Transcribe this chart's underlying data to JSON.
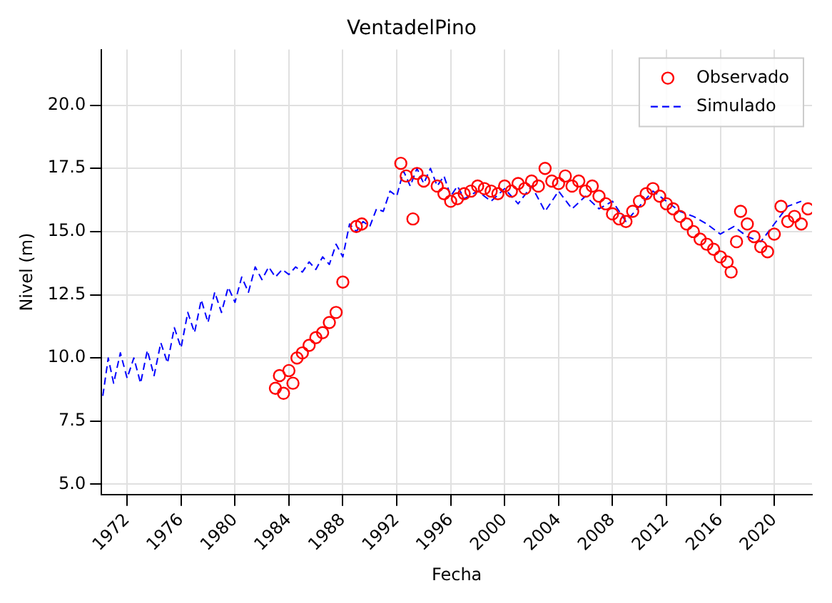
{
  "chart_data": {
    "type": "line",
    "title": "VentadelPino",
    "xlabel": "Fecha",
    "ylabel": "Nivel (m)",
    "xlim": [
      1970.1,
      2022.8
    ],
    "ylim": [
      4.6,
      22.2
    ],
    "xticks": [
      1972,
      1976,
      1980,
      1984,
      1988,
      1992,
      1996,
      2000,
      2004,
      2008,
      2012,
      2016,
      2020
    ],
    "yticks": [
      {
        "value": 5,
        "label": "5.0"
      },
      {
        "value": 7.5,
        "label": "7.5"
      },
      {
        "value": 10,
        "label": "10.0"
      },
      {
        "value": 12.5,
        "label": "12.5"
      },
      {
        "value": 15,
        "label": "15.0"
      },
      {
        "value": 17.5,
        "label": "17.5"
      },
      {
        "value": 20,
        "label": "20.0"
      }
    ],
    "grid": true,
    "legend": "top right",
    "series": [
      {
        "name": "Observado",
        "type": "scatter",
        "marker": "circle",
        "color": "#ff0000",
        "x": [
          1983,
          1983.3,
          1983.6,
          1984,
          1984.3,
          1984.6,
          1985,
          1985.5,
          1986,
          1986.5,
          1987,
          1987.5,
          1988,
          1989,
          1989.4,
          1992.3,
          1992.7,
          1993.2,
          1993.5,
          1994,
          1995,
          1995.5,
          1996,
          1996.5,
          1997,
          1997.5,
          1998,
          1998.5,
          1999,
          1999.5,
          2000,
          2000.5,
          2001,
          2001.5,
          2002,
          2002.5,
          2003,
          2003.5,
          2004,
          2004.5,
          2005,
          2005.5,
          2006,
          2006.5,
          2007,
          2007.5,
          2008,
          2008.5,
          2009,
          2009.5,
          2010,
          2010.5,
          2011,
          2011.5,
          2012,
          2012.5,
          2013,
          2013.5,
          2014,
          2014.5,
          2015,
          2015.5,
          2016,
          2016.5,
          2016.8,
          2017.2,
          2017.5,
          2018,
          2018.5,
          2019,
          2019.5,
          2020,
          2020.5,
          2021,
          2021.5,
          2022,
          2022.5
        ],
        "values": [
          8.8,
          9.3,
          8.6,
          9.5,
          9.0,
          10.0,
          10.2,
          10.5,
          10.8,
          11.0,
          11.4,
          11.8,
          13.0,
          15.2,
          15.3,
          17.7,
          17.2,
          15.5,
          17.3,
          17.0,
          16.8,
          16.5,
          16.2,
          16.3,
          16.5,
          16.6,
          16.8,
          16.7,
          16.6,
          16.5,
          16.8,
          16.6,
          16.9,
          16.7,
          17.0,
          16.8,
          17.5,
          17.0,
          16.9,
          17.2,
          16.8,
          17.0,
          16.6,
          16.8,
          16.4,
          16.1,
          15.7,
          15.5,
          15.4,
          15.8,
          16.2,
          16.5,
          16.7,
          16.4,
          16.1,
          15.9,
          15.6,
          15.3,
          15.0,
          14.7,
          14.5,
          14.3,
          14.0,
          13.8,
          13.4,
          14.6,
          15.8,
          15.3,
          14.8,
          14.4,
          14.2,
          14.9,
          16.0,
          15.4,
          15.6,
          15.3,
          15.9
        ]
      },
      {
        "name": "Simulado",
        "type": "line",
        "marker": "none",
        "line_style": "dashed",
        "color": "#0000ff",
        "x": [
          1970.2,
          1970.6,
          1971,
          1971.5,
          1972,
          1972.5,
          1973,
          1973.5,
          1974,
          1974.5,
          1975,
          1975.5,
          1976,
          1976.5,
          1977,
          1977.5,
          1978,
          1978.5,
          1979,
          1979.5,
          1980,
          1980.5,
          1981,
          1981.5,
          1982,
          1982.5,
          1983,
          1983.5,
          1984,
          1984.5,
          1985,
          1985.5,
          1986,
          1986.5,
          1987,
          1987.5,
          1988,
          1988.5,
          1989,
          1989.5,
          1990,
          1990.5,
          1991,
          1991.5,
          1992,
          1992.5,
          1993,
          1993.5,
          1994,
          1994.5,
          1995,
          1995.5,
          1996,
          1996.5,
          1997,
          1998,
          1999,
          2000,
          2001,
          2002,
          2003,
          2004,
          2005,
          2006,
          2007,
          2008,
          2009,
          2010,
          2011,
          2012,
          2013,
          2014,
          2015,
          2016,
          2017,
          2018,
          2019,
          2020,
          2021,
          2022
        ],
        "values": [
          8.5,
          10.0,
          9.0,
          10.2,
          9.2,
          10.0,
          9.0,
          10.3,
          9.3,
          10.6,
          9.8,
          11.2,
          10.4,
          11.8,
          11.0,
          12.3,
          11.4,
          12.6,
          11.8,
          12.8,
          12.2,
          13.2,
          12.6,
          13.6,
          13.1,
          13.6,
          13.2,
          13.5,
          13.3,
          13.6,
          13.4,
          13.8,
          13.5,
          14.0,
          13.7,
          14.5,
          14.0,
          15.3,
          15.0,
          15.4,
          15.2,
          15.9,
          15.8,
          16.6,
          16.4,
          17.4,
          16.8,
          17.5,
          16.9,
          17.5,
          16.8,
          17.2,
          16.4,
          16.8,
          16.3,
          16.6,
          16.2,
          16.7,
          16.1,
          16.8,
          15.8,
          16.6,
          15.9,
          16.4,
          15.9,
          16.2,
          15.4,
          16.0,
          16.6,
          16.2,
          15.8,
          15.6,
          15.3,
          14.9,
          15.2,
          14.8,
          14.6,
          15.3,
          16.0,
          16.2
        ]
      }
    ]
  }
}
